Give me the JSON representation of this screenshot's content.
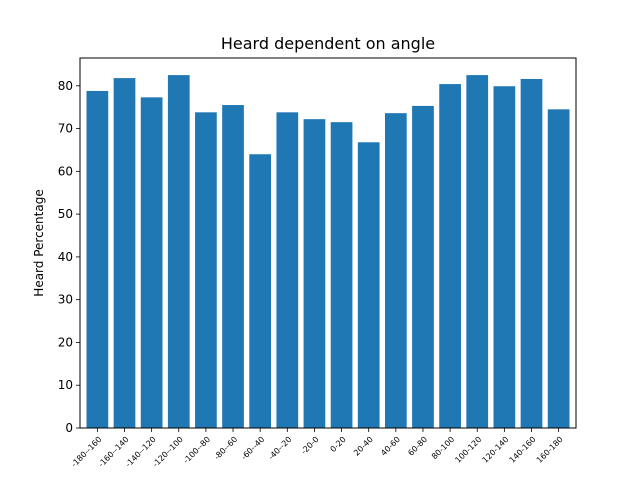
{
  "chart_data": {
    "type": "bar",
    "title": "Heard dependent on angle",
    "xlabel": "",
    "ylabel": "Heard Percentage",
    "ylim": [
      0,
      86.5
    ],
    "yticks": [
      0,
      10,
      20,
      30,
      40,
      50,
      60,
      70,
      80
    ],
    "grid": false,
    "bar_color": "#1f77b4",
    "categories": [
      "-180--160",
      "-160--140",
      "-140--120",
      "-120--100",
      "-100--80",
      "-80--60",
      "-60--40",
      "-40--20",
      "-20-0",
      "0-20",
      "20-40",
      "40-60",
      "60-80",
      "80-100",
      "100-120",
      "120-140",
      "140-160",
      "160-180"
    ],
    "values": [
      78.8,
      81.8,
      77.3,
      82.5,
      73.8,
      75.5,
      64.0,
      73.8,
      72.2,
      71.5,
      66.8,
      73.6,
      75.3,
      80.4,
      82.5,
      79.9,
      81.6,
      74.5
    ]
  }
}
